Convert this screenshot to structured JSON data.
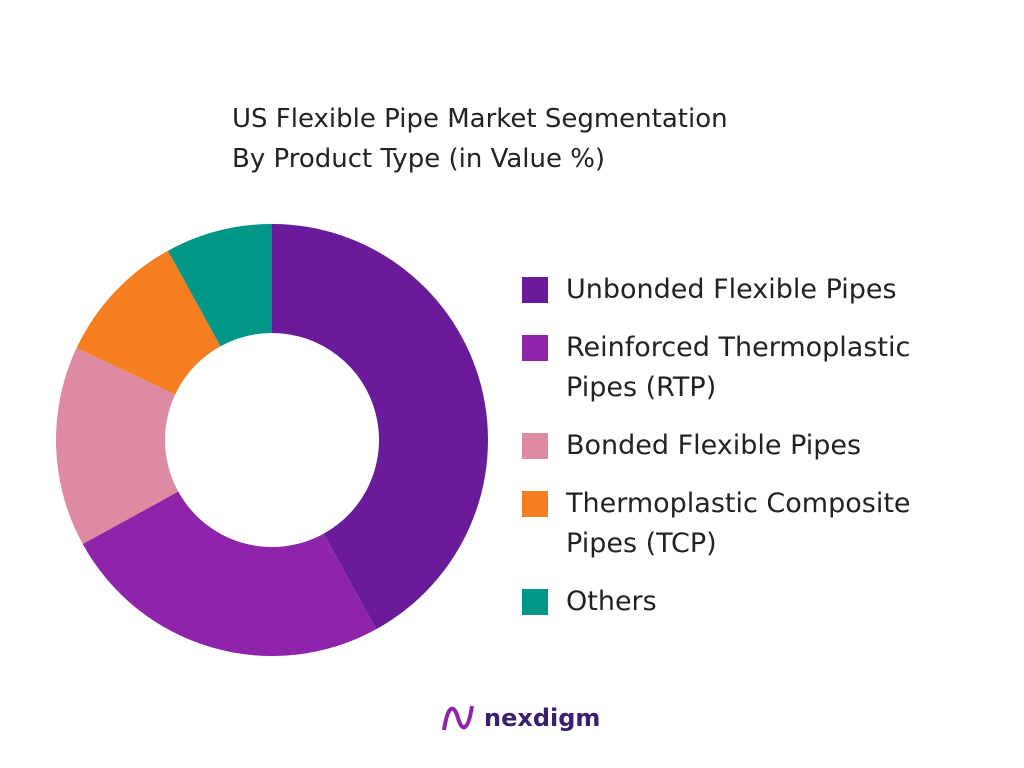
{
  "chart_data": {
    "type": "donut",
    "title": "US Flexible Pipe Market Segmentation",
    "subtitle": "By Product Type (in Value %)",
    "categories": [
      "Unbonded Flexible Pipes",
      "Reinforced Thermoplastic Pipes (RTP)",
      "Bonded Flexible Pipes",
      "Thermoplastic Composite Pipes (TCP)",
      "Others"
    ],
    "values": [
      42,
      25,
      15,
      10,
      8
    ],
    "colors": [
      "#6a1b9a",
      "#8e24aa",
      "#de8aa0",
      "#f57f20",
      "#009688"
    ],
    "legend": "right"
  },
  "footer": {
    "brand": "nexdigm"
  }
}
